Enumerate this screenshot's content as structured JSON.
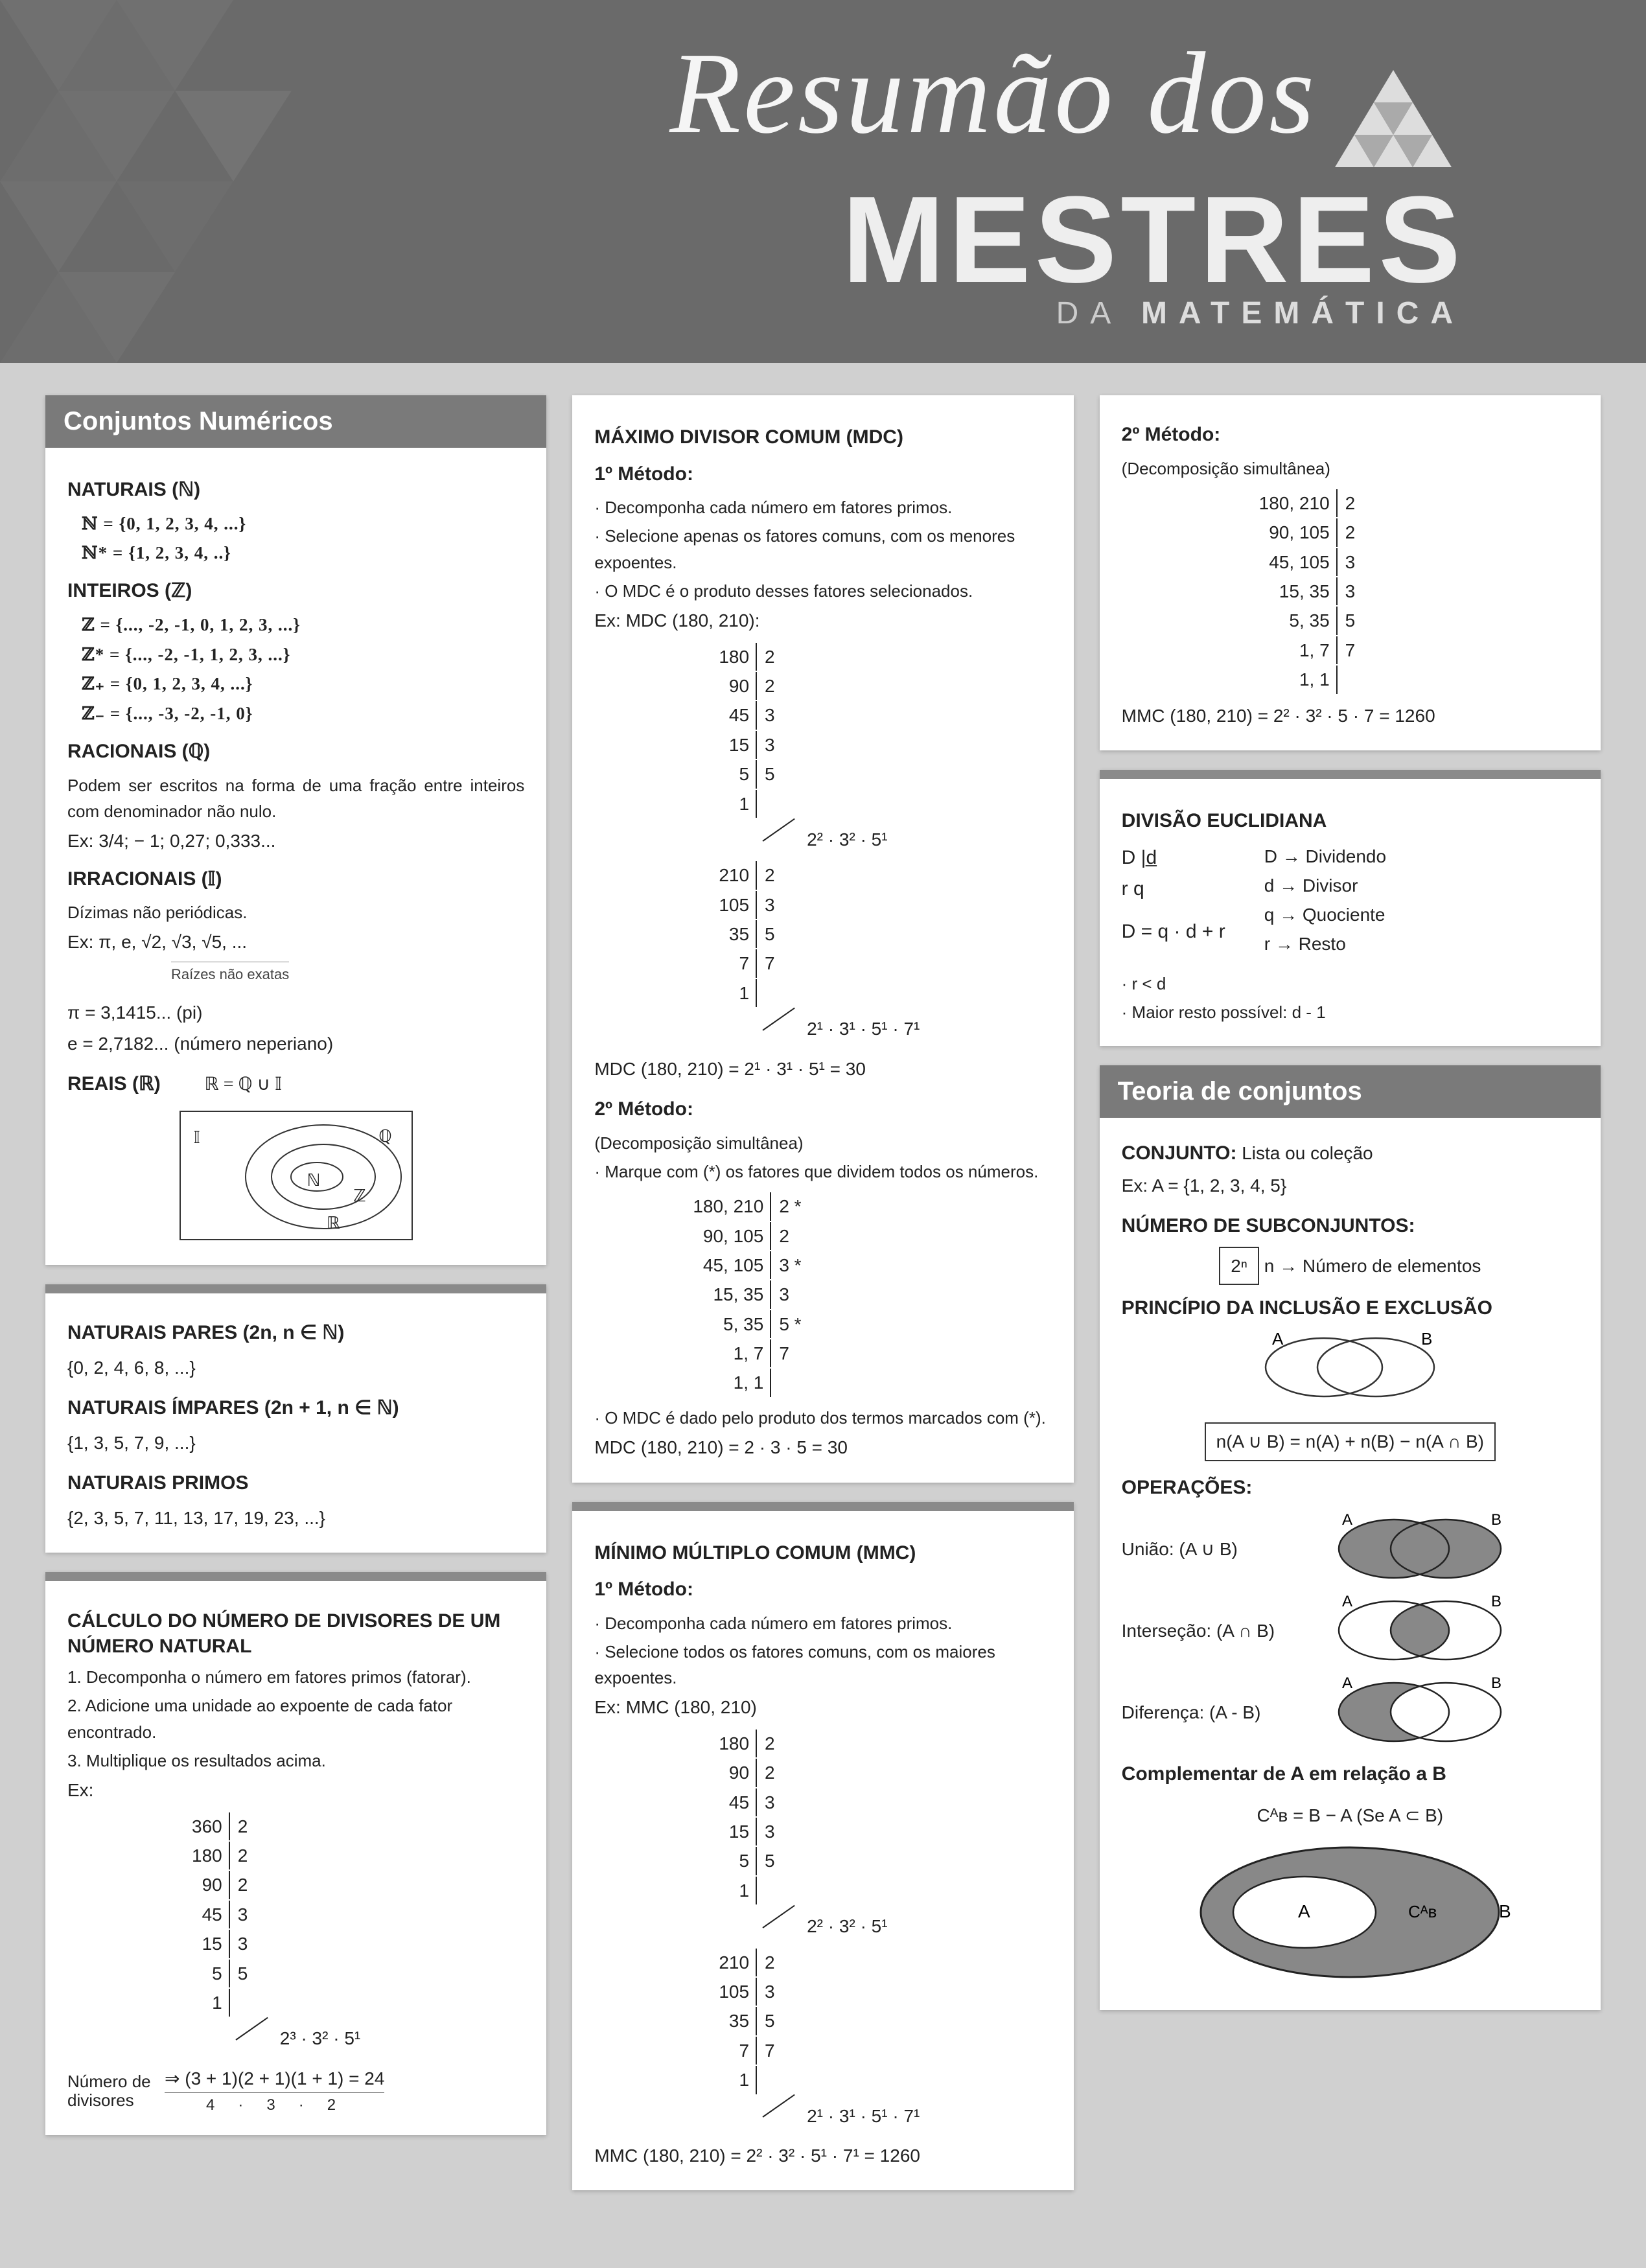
{
  "header": {
    "script": "Resumão dos",
    "title": "MESTRES",
    "sub_da": "DA ",
    "sub_mat": "MATEMÁTICA"
  },
  "col1": {
    "box1": {
      "title": "Conjuntos Numéricos",
      "naturais_head": "NATURAIS (ℕ)",
      "nat1": "ℕ  = {0, 1, 2, 3, 4, ...}",
      "nat2": "ℕ* = {1, 2, 3, 4, ..}",
      "inteiros_head": "INTEIROS (ℤ)",
      "int1": "ℤ  = {..., -2, -1, 0, 1, 2, 3, ...}",
      "int2": "ℤ* = {..., -2, -1, 1, 2, 3, ...}",
      "int3": "ℤ₊ = {0, 1, 2, 3, 4, ...}",
      "int4": "ℤ₋ = {..., -3, -2, -1, 0}",
      "racionais_head": "RACIONAIS (ℚ)",
      "rac_text": "Podem ser escritos na forma de uma fração entre inteiros com denominador não nulo.",
      "rac_ex": "Ex: 3/4; − 1;  0,27; 0,333...",
      "irr_head": "IRRACIONAIS (𝕀)",
      "irr_text": "Dízimas não periódicas.",
      "irr_ex": "Ex: π,  e,  √2, √3, √5, ...",
      "irr_note": "Raízes não exatas",
      "pi_line": "π = 3,1415...         (pi)",
      "e_line": "e = 2,7182...         (número neperiano)",
      "reais_head": "REAIS (ℝ)",
      "reais_eq": "ℝ = ℚ ∪ 𝕀"
    },
    "box2": {
      "pares_head": "NATURAIS PARES (2n, n ∈ ℕ)",
      "pares": "{0, 2, 4, 6, 8, ...}",
      "impares_head": "NATURAIS ÍMPARES (2n + 1, n ∈ ℕ)",
      "impares": "{1, 3, 5, 7, 9, ...}",
      "primos_head": "NATURAIS PRIMOS",
      "primos": "{2, 3, 5, 7, 11, 13, 17, 19, 23, ...}"
    },
    "box3": {
      "title": "CÁLCULO DO NÚMERO DE DIVISORES DE UM NÚMERO NATURAL",
      "step1": "1. Decomponha o número em fatores primos (fatorar).",
      "step2": "2. Adicione uma unidade ao expoente de cada fator encontrado.",
      "step3": "3. Multiplique os resultados acima.",
      "ex_label": "Ex:",
      "rows": [
        [
          "360",
          "2"
        ],
        [
          "180",
          "2"
        ],
        [
          "90",
          "2"
        ],
        [
          "45",
          "3"
        ],
        [
          "15",
          "3"
        ],
        [
          "5",
          "5"
        ],
        [
          "1",
          ""
        ]
      ],
      "prime_decomp": "2³ · 3² · 5¹",
      "num_div_label": "Número de divisores",
      "num_div_calc": "⇒ (3 + 1)(2 + 1)(1 + 1) = 24",
      "num_div_under": "      4   ·   3   ·   2"
    }
  },
  "col2": {
    "box1": {
      "mdc_title": "MÁXIMO DIVISOR COMUM (MDC)",
      "m1_head": "1º Método:",
      "m1_s1": "· Decomponha cada número em fatores primos.",
      "m1_s2": "· Selecione apenas os fatores comuns, com os menores expoentes.",
      "m1_s3": "· O MDC é o produto desses fatores selecionados.",
      "m1_ex": "Ex: MDC (180, 210):",
      "rows180": [
        [
          "180",
          "2"
        ],
        [
          "90",
          "2"
        ],
        [
          "45",
          "3"
        ],
        [
          "15",
          "3"
        ],
        [
          "5",
          "5"
        ],
        [
          "1",
          ""
        ]
      ],
      "decomp180": "2² · 3² · 5¹",
      "rows210": [
        [
          "210",
          "2"
        ],
        [
          "105",
          "3"
        ],
        [
          "35",
          "5"
        ],
        [
          "7",
          "7"
        ],
        [
          "1",
          ""
        ]
      ],
      "decomp210": "2¹ · 3¹ · 5¹ · 7¹",
      "mdc_result": "MDC (180, 210) = 2¹ · 3¹ · 5¹ = 30",
      "m2_head": "2º Método:",
      "m2_sub": "(Decomposição simultânea)",
      "m2_text": "· Marque com (*) os fatores que dividem todos os números.",
      "sim_rows": [
        [
          "180, 210",
          "2 *"
        ],
        [
          "90, 105",
          "2"
        ],
        [
          "45, 105",
          "3 *"
        ],
        [
          "15, 35",
          "3"
        ],
        [
          "5, 35",
          "5 *"
        ],
        [
          "1, 7",
          "7"
        ],
        [
          "1, 1",
          ""
        ]
      ],
      "m2_text2": "· O MDC é dado pelo produto dos termos marcados com (*).",
      "m2_result": "MDC (180, 210) = 2 · 3 · 5 = 30"
    },
    "box2": {
      "mmc_title": "MÍNIMO MÚLTIPLO COMUM (MMC)",
      "m1_head": "1º Método:",
      "m1_s1": "· Decomponha cada número em fatores primos.",
      "m1_s2": "· Selecione todos os fatores comuns, com os maiores expoentes.",
      "m1_ex": "Ex: MMC (180, 210)",
      "rows180": [
        [
          "180",
          "2"
        ],
        [
          "90",
          "2"
        ],
        [
          "45",
          "3"
        ],
        [
          "15",
          "3"
        ],
        [
          "5",
          "5"
        ],
        [
          "1",
          ""
        ]
      ],
      "decomp180": "2² · 3² · 5¹",
      "rows210": [
        [
          "210",
          "2"
        ],
        [
          "105",
          "3"
        ],
        [
          "35",
          "5"
        ],
        [
          "7",
          "7"
        ],
        [
          "1",
          ""
        ]
      ],
      "decomp210": "2¹ · 3¹ · 5¹ · 7¹",
      "mmc_result": "MMC (180, 210) =  2² · 3² · 5¹ · 7¹ = 1260"
    }
  },
  "col3": {
    "box1": {
      "m2_head": "2º Método:",
      "m2_sub": "(Decomposição simultânea)",
      "sim_rows": [
        [
          "180, 210",
          "2"
        ],
        [
          "90, 105",
          "2"
        ],
        [
          "45, 105",
          "3"
        ],
        [
          "15, 35",
          "3"
        ],
        [
          "5, 35",
          "5"
        ],
        [
          "1, 7",
          "7"
        ],
        [
          "1, 1",
          ""
        ]
      ],
      "mmc_result": "MMC (180, 210) = 2² · 3² · 5 · 7 = 1260"
    },
    "box2": {
      "div_title": "DIVISÃO EUCLIDIANA",
      "lines": [
        "D → Dividendo",
        "d → Divisor",
        "q → Quociente",
        "r → Resto"
      ],
      "Dd": "D   |d̲",
      "rq": "r    q",
      "eq": "D = q · d + r",
      "cond1": "· r < d",
      "cond2": "· Maior resto possível: d - 1"
    },
    "box3": {
      "title": "Teoria de conjuntos",
      "conj_head": "CONJUNTO:",
      "conj_text": " Lista ou coleção",
      "conj_ex": "Ex: A = {1, 2, 3, 4, 5}",
      "sub_head": "NÚMERO DE SUBCONJUNTOS:",
      "sub_box": "2ⁿ",
      "sub_text": "  n → Número de elementos",
      "inc_head": "PRINCÍPIO DA INCLUSÃO E EXCLUSÃO",
      "inc_formula": "n(A ∪ B) = n(A) + n(B) − n(A ∩ B)",
      "ops_head": "OPERAÇÕES:",
      "uniao": "União: (A ∪ B)",
      "inter": "Interseção: (A ∩ B)",
      "diff": "Diferença: (A - B)",
      "comp_head": "Complementar de A em relação a B",
      "comp_eq": "Cᴬʙ = B − A      (Se A ⊂ B)"
    }
  }
}
